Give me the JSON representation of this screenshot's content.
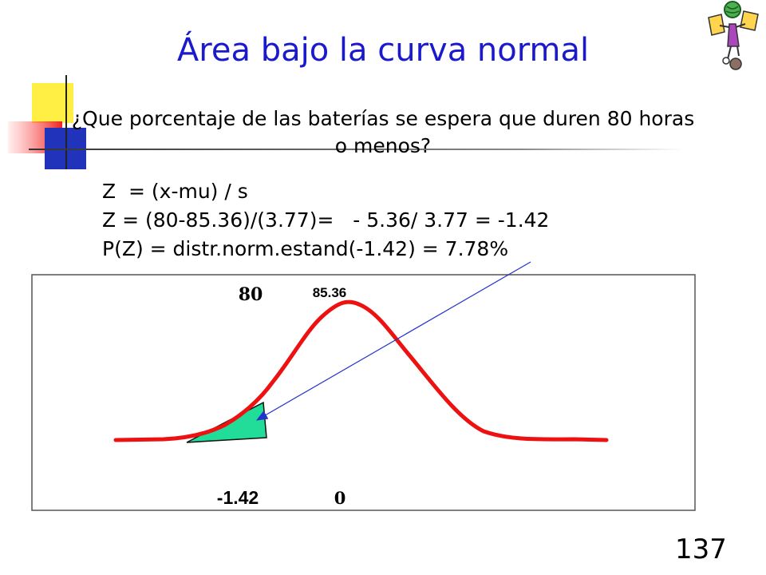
{
  "slide": {
    "title": "Área bajo la curva normal",
    "question_line1": "¿Que porcentaje de las baterías se espera que duren 80 horas",
    "question_line2": "o menos?",
    "formulas": [
      "Z  = (x-mu) / s",
      "Z = (80-85.36)/(3.77)=   - 5.36/ 3.77 = -1.42",
      "P(Z) = distr.norm.estand(-1.42) = 7.78%"
    ],
    "slide_number": "137"
  },
  "diagram": {
    "label_x_value": "80",
    "label_mean": "85.36",
    "label_z_value": "-1.42",
    "label_z_mean": "0",
    "colors": {
      "curve": "#ee1111",
      "shade": "#22dd99",
      "arrow": "#2233cc",
      "frame": "#555555"
    }
  },
  "icons": {
    "clipart": "person-juggling-globe-icon",
    "decor": "colored-squares-decoration"
  }
}
